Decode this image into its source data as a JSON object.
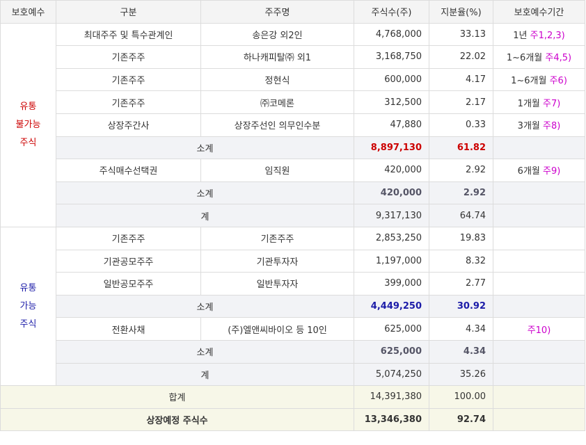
{
  "headers": [
    "보호예수",
    "구분",
    "주주명",
    "주식수(주)",
    "지분율(%)",
    "보호예수기간"
  ],
  "nontradable_group": {
    "label_lines": [
      "유통",
      "불가능",
      "주식"
    ],
    "rows": [
      {
        "category": "최대주주 및 특수관계인",
        "holder": "송은강 외2인",
        "shares": "4,768,000",
        "ratio": "33.13",
        "period": "1년",
        "note": "주1,2,3)"
      },
      {
        "category": "기존주주",
        "holder": "하나캐피탈㈜ 외1",
        "shares": "3,168,750",
        "ratio": "22.02",
        "period": "1~6개월",
        "note": "주4,5)"
      },
      {
        "category": "기존주주",
        "holder": "정현식",
        "shares": "600,000",
        "ratio": "4.17",
        "period": "1~6개월",
        "note": "주6)"
      },
      {
        "category": "기존주주",
        "holder": "㈜코메론",
        "shares": "312,500",
        "ratio": "2.17",
        "period": "1개월",
        "note": "주7)"
      },
      {
        "category": "상장주간사",
        "holder": "상장주선인 의무인수분",
        "shares": "47,880",
        "ratio": "0.33",
        "period": "3개월",
        "note": "주8)"
      }
    ],
    "subtotal1": {
      "label": "소계",
      "shares": "8,897,130",
      "ratio": "61.82"
    },
    "option_row": {
      "category": "주식매수선택권",
      "holder": "임직원",
      "shares": "420,000",
      "ratio": "2.92",
      "period": "6개월",
      "note": "주9)"
    },
    "subtotal2": {
      "label": "소계",
      "shares": "420,000",
      "ratio": "2.92"
    },
    "total": {
      "label": "계",
      "shares": "9,317,130",
      "ratio": "64.74"
    }
  },
  "tradable_group": {
    "label_lines": [
      "유통",
      "가능",
      "주식"
    ],
    "rows": [
      {
        "category": "기존주주",
        "holder": "기존주주",
        "shares": "2,853,250",
        "ratio": "19.83"
      },
      {
        "category": "기관공모주주",
        "holder": "기관투자자",
        "shares": "1,197,000",
        "ratio": "8.32"
      },
      {
        "category": "일반공모주주",
        "holder": "일반투자자",
        "shares": "399,000",
        "ratio": "2.77"
      }
    ],
    "subtotal1": {
      "label": "소계",
      "shares": "4,449,250",
      "ratio": "30.92"
    },
    "bond_row": {
      "category": "전환사채",
      "holder": "(주)엘앤씨바이오 등 10인",
      "shares": "625,000",
      "ratio": "4.34",
      "note": "주10)"
    },
    "subtotal2": {
      "label": "소계",
      "shares": "625,000",
      "ratio": "4.34"
    },
    "total": {
      "label": "계",
      "shares": "5,074,250",
      "ratio": "35.26"
    }
  },
  "grand_total": {
    "label": "합계",
    "shares": "14,391,380",
    "ratio": "100.00"
  },
  "listing": {
    "label": "상장예정 주식수",
    "shares": "13,346,380",
    "ratio": "92.74"
  },
  "colors": {
    "nontradable_label": "#cc0000",
    "tradable_label": "#1c1ca8",
    "note": "#cc00cc",
    "subtotal_bg": "#f2f3f6",
    "total_bg": "#f7f7e8"
  }
}
